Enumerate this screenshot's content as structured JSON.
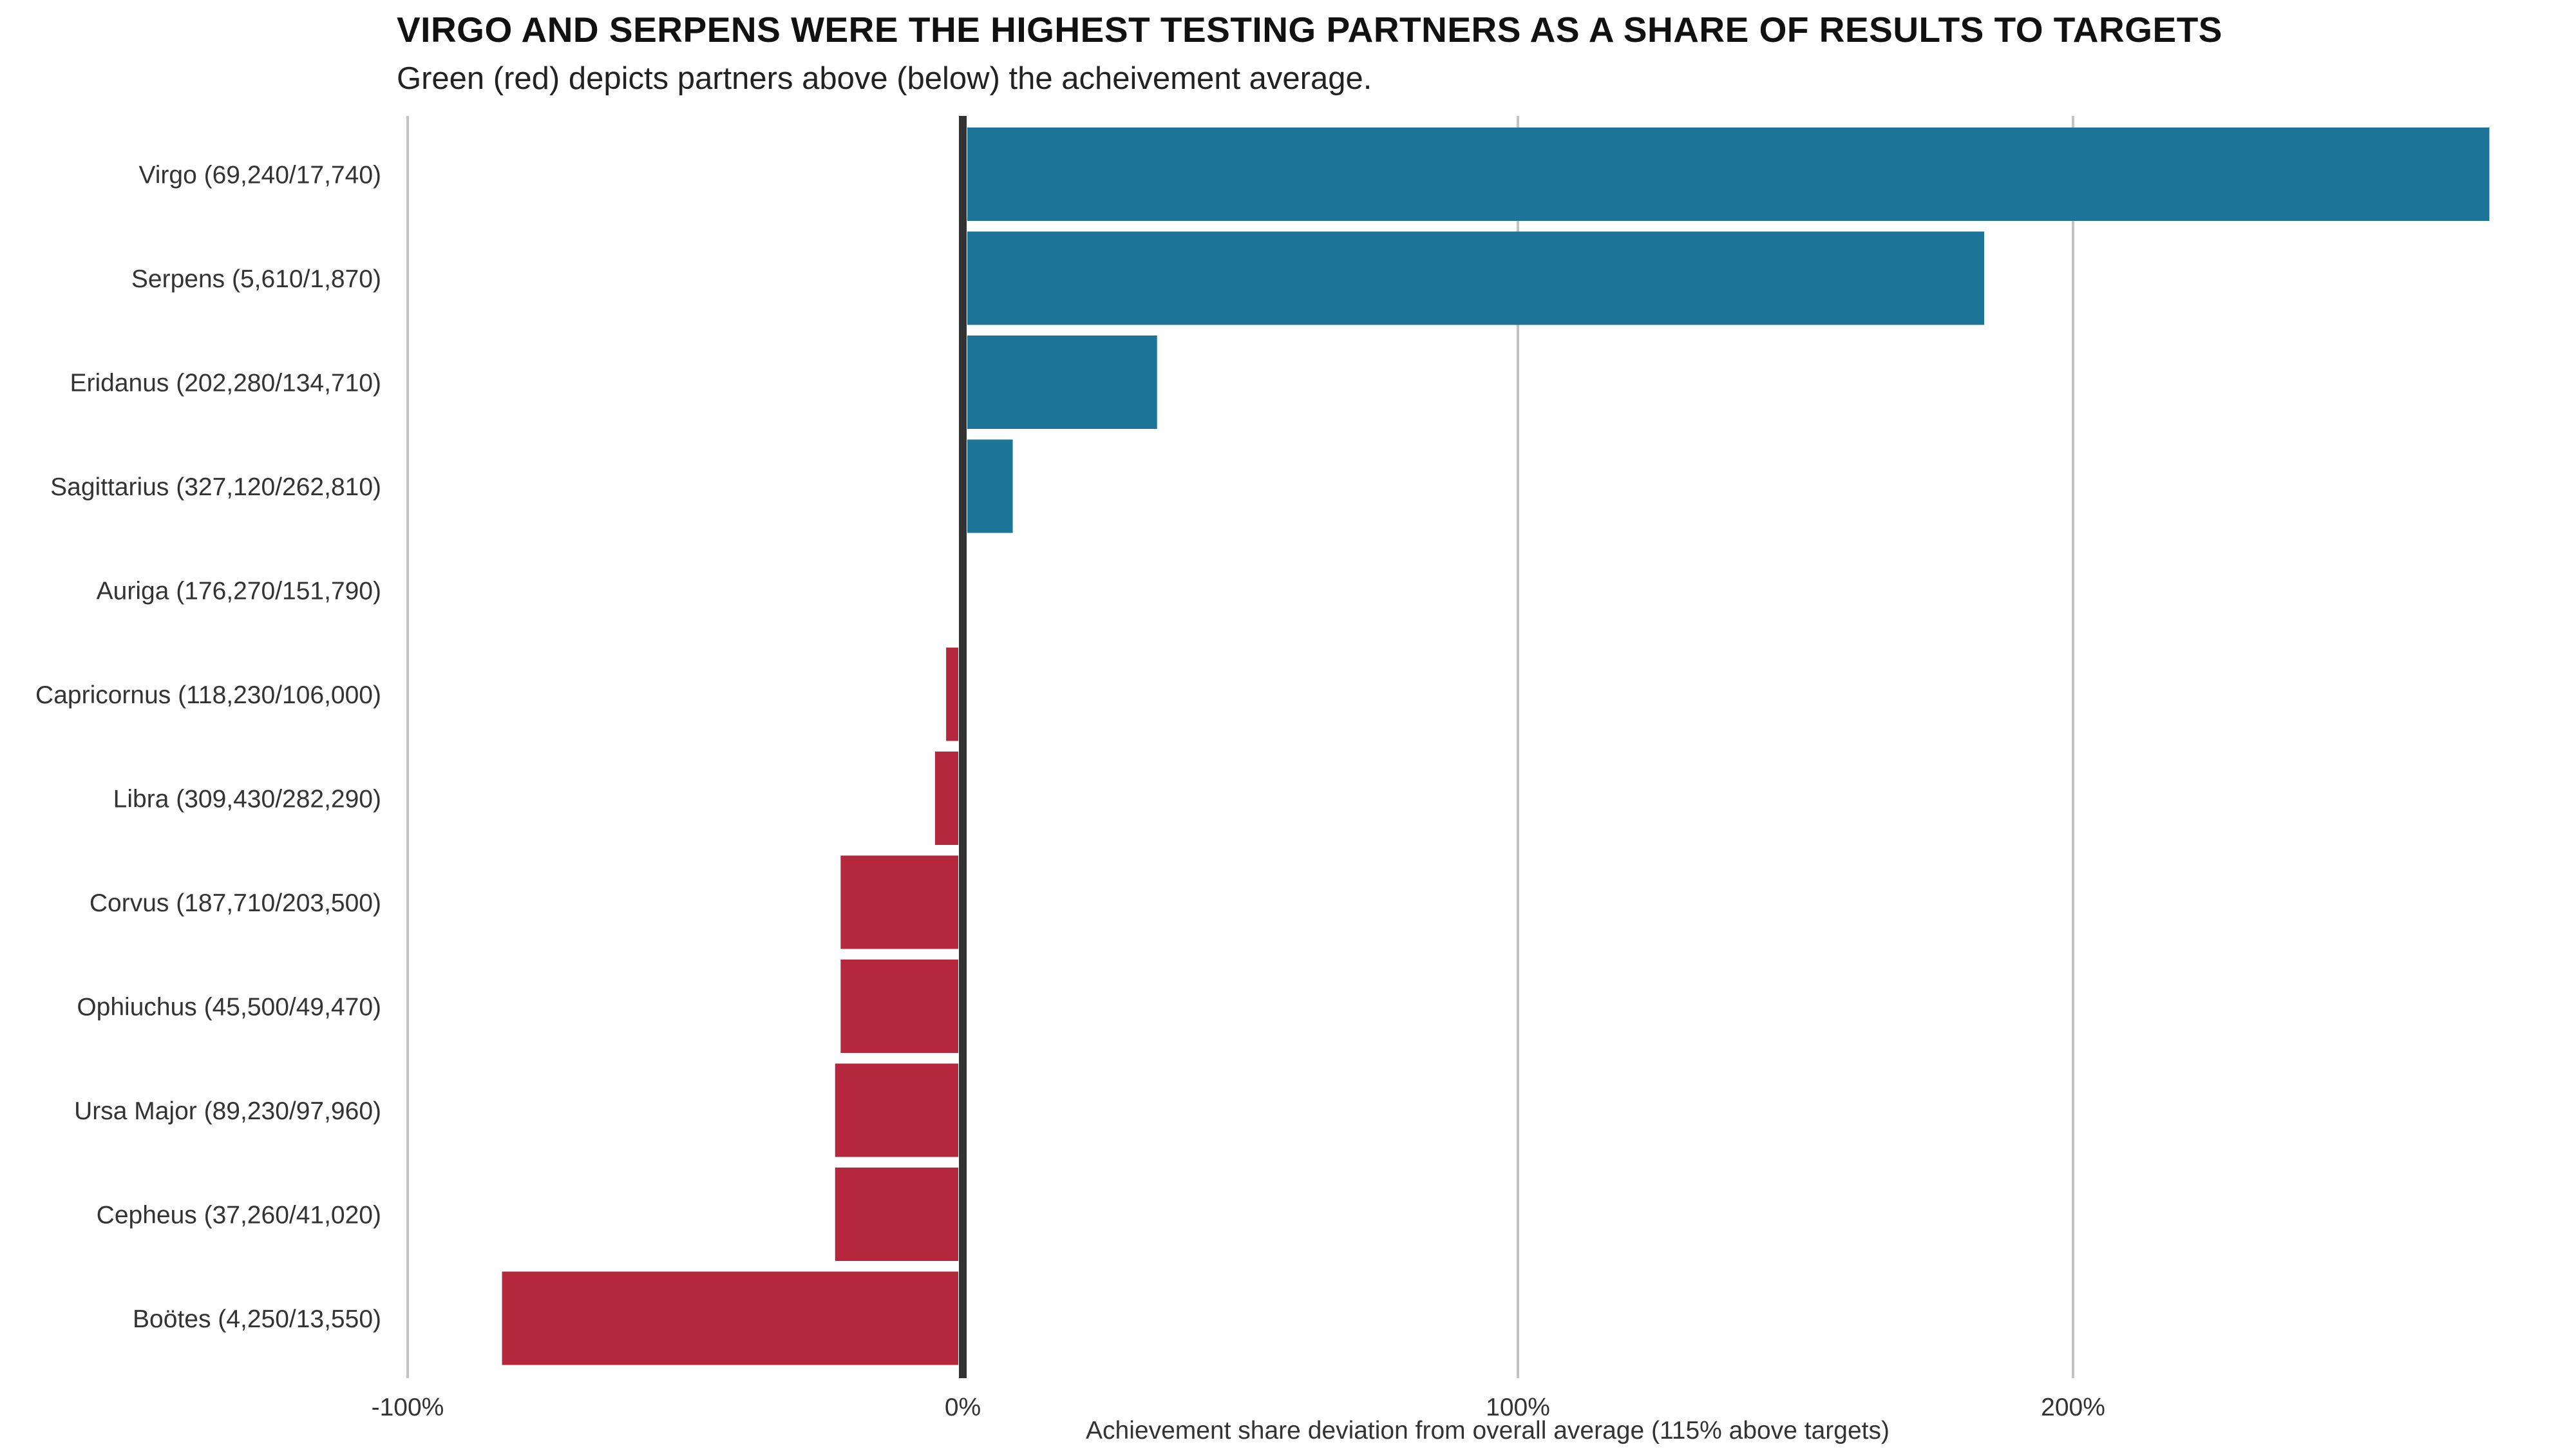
{
  "chart_data": {
    "type": "bar",
    "orientation": "horizontal",
    "title": "VIRGO AND SERPENS WERE THE HIGHEST TESTING PARTNERS AS A SHARE OF RESULTS TO TARGETS",
    "subtitle": "Green (red) depicts partners above (below) the acheivement average.",
    "xlabel": "Achievement share deviation from overall average (115% above targets)",
    "ylabel": "",
    "xlim": [
      -100,
      285
    ],
    "xticks": [
      -100,
      0,
      100,
      200
    ],
    "xtick_labels": [
      "-100%",
      "0%",
      "100%",
      "200%"
    ],
    "grid": "vertical",
    "legend": "none",
    "categories": [
      "Virgo (69,240/17,740)",
      "Serpens (5,610/1,870)",
      "Eridanus (202,280/134,710)",
      "Sagittarius (327,120/262,810)",
      "Auriga (176,270/151,790)",
      "Capricornus (118,230/106,000)",
      "Libra (309,430/282,290)",
      "Corvus (187,710/203,500)",
      "Ophiuchus (45,500/49,470)",
      "Ursa Major (89,230/97,960)",
      "Cepheus (37,260/41,020)",
      "Boötes (4,250/13,550)"
    ],
    "values": [
      275,
      184,
      35,
      9,
      0,
      -3,
      -5,
      -22,
      -22,
      -23,
      -23,
      -83
    ],
    "colors": {
      "above": "#1c7598",
      "below": "#b5273c",
      "zero_line": "#333333",
      "grid": "#c4c4c4"
    }
  }
}
